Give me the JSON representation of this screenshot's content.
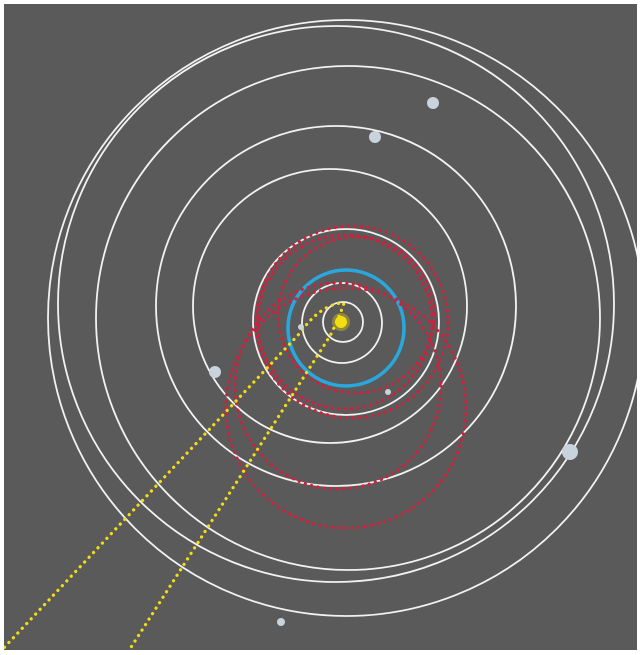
{
  "diagram": {
    "colors": {
      "background": "#5a5a5a",
      "frame": "#ffffff",
      "planet_orbit": "#f2f2f2",
      "planet_body": "#c9d3dc",
      "highlight_orbit": "#2aa7dd",
      "red_orbits": "#d21f3c",
      "sun": "#f3de12",
      "yellow_paths": "#f3de12"
    },
    "orbits": [
      "orbit-1",
      "orbit-2",
      "orbit-3",
      "orbit-4",
      "orbit-5",
      "orbit-6",
      "orbit-7",
      "orbit-8"
    ],
    "highlighted_orbit": "earth-like-orbit",
    "red_dotted_orbits": 5,
    "yellow_dotted_paths": 2,
    "planets": 6,
    "sun": "central-star"
  }
}
